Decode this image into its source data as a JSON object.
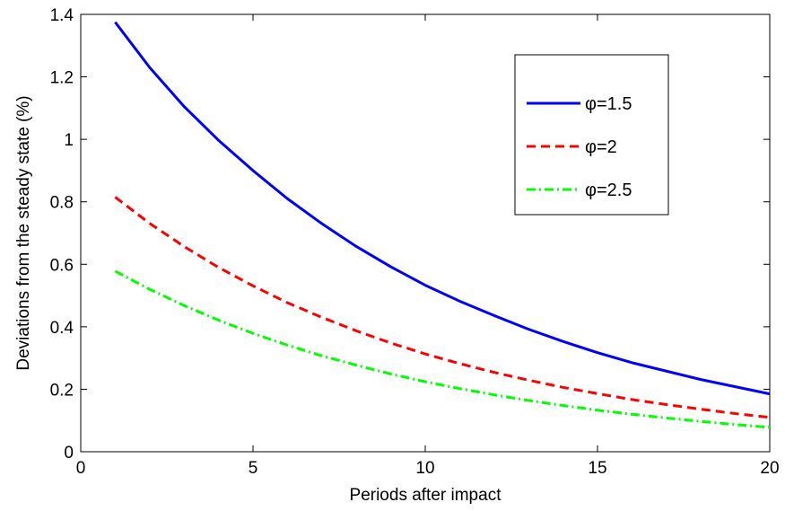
{
  "chart_data": {
    "type": "line",
    "title": "",
    "xlabel": "Periods after impact",
    "ylabel": "Deviations from the steady state (%)",
    "xlim": [
      0,
      20
    ],
    "ylim": [
      0,
      1.4
    ],
    "xticks": [
      0,
      5,
      10,
      15,
      20
    ],
    "xtick_labels": [
      "0",
      "5",
      "10",
      "15",
      "20"
    ],
    "yticks": [
      0,
      0.2,
      0.4,
      0.6,
      0.8,
      1,
      1.2,
      1.4
    ],
    "ytick_labels": [
      "0",
      "0.2",
      "0.4",
      "0.6",
      "0.8",
      "1",
      "1.2",
      "1.4"
    ],
    "grid": false,
    "legend_position": "top-right",
    "x": [
      1,
      2,
      3,
      4,
      5,
      6,
      7,
      8,
      9,
      10,
      11,
      12,
      13,
      14,
      15,
      16,
      17,
      18,
      19,
      20
    ],
    "series": [
      {
        "name": "φ=1.5",
        "color": "#0000ff",
        "line_style": "solid",
        "values": [
          1.375,
          1.23,
          1.105,
          0.997,
          0.9,
          0.81,
          0.73,
          0.657,
          0.592,
          0.533,
          0.482,
          0.436,
          0.392,
          0.353,
          0.317,
          0.285,
          0.258,
          0.231,
          0.208,
          0.185
        ]
      },
      {
        "name": "φ=2",
        "color": "#ff0000",
        "line_style": "dashed",
        "values": [
          0.815,
          0.731,
          0.657,
          0.59,
          0.531,
          0.477,
          0.43,
          0.387,
          0.348,
          0.313,
          0.282,
          0.254,
          0.229,
          0.206,
          0.186,
          0.167,
          0.151,
          0.136,
          0.122,
          0.11
        ]
      },
      {
        "name": "φ=2.5",
        "color": "#00ff00",
        "line_style": "dash-dot",
        "values": [
          0.578,
          0.52,
          0.468,
          0.421,
          0.379,
          0.341,
          0.307,
          0.277,
          0.249,
          0.224,
          0.202,
          0.182,
          0.164,
          0.148,
          0.133,
          0.12,
          0.108,
          0.097,
          0.087,
          0.078
        ]
      }
    ]
  }
}
